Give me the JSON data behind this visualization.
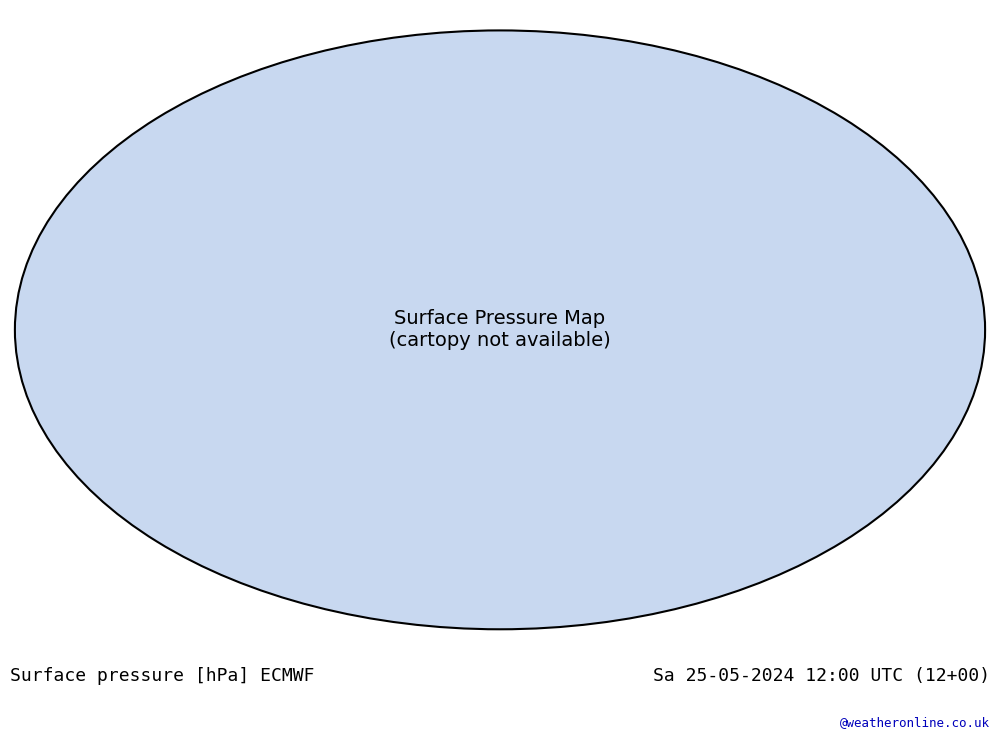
{
  "title_left": "Surface pressure [hPa] ECMWF",
  "title_right": "Sa 25-05-2024 12:00 UTC (12+00)",
  "watermark": "@weatheronline.co.uk",
  "background_color": "#ffffff",
  "land_color": "#c8e8c8",
  "ocean_color": "#dce8f0",
  "outside_color": "#d8d8d8",
  "high_pressure_color": "#ff0000",
  "low_pressure_color": "#0000ff",
  "label_1013_color": "#000000",
  "contour_interval": 4,
  "pressure_min": 960,
  "pressure_max": 1040,
  "title_fontsize": 13,
  "watermark_fontsize": 9,
  "watermark_color": "#0000bb",
  "fig_width": 10.0,
  "fig_height": 7.33
}
